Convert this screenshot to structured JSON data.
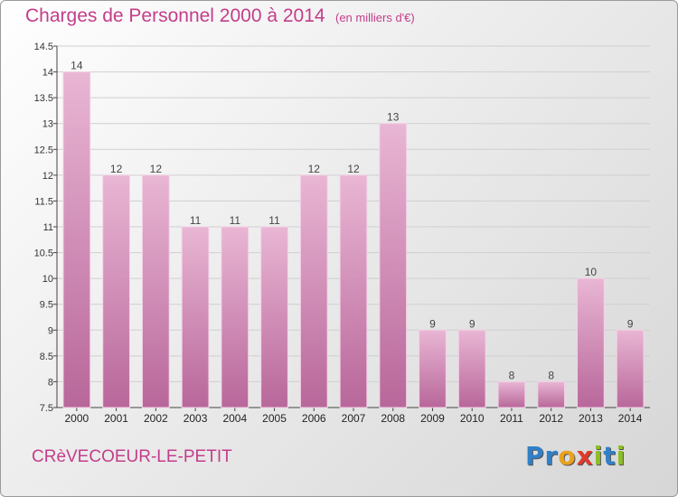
{
  "header": {
    "title": "Charges de Personnel 2000 à 2014",
    "unit": "(en milliers d'€)"
  },
  "footer": {
    "city": "CRèVECOEUR-LE-PETIT",
    "logo_letters": [
      {
        "char": "P",
        "color": "#2f80c8"
      },
      {
        "char": "r",
        "color": "#2f80c8"
      },
      {
        "char": "o",
        "color": "#e8a21c"
      },
      {
        "char": "x",
        "color": "#e23a2a"
      },
      {
        "char": "i",
        "color": "#8cbf26"
      },
      {
        "char": "t",
        "color": "#2f80c8"
      },
      {
        "char": "i",
        "color": "#8cbf26"
      }
    ]
  },
  "colors": {
    "bar_light": "#e9b6d4",
    "bar_dark": "#b8679a",
    "accent": "#c43d8a"
  },
  "chart_data": {
    "type": "bar",
    "categories": [
      "2000",
      "2001",
      "2002",
      "2003",
      "2004",
      "2005",
      "2006",
      "2007",
      "2008",
      "2009",
      "2010",
      "2011",
      "2012",
      "2013",
      "2014"
    ],
    "values": [
      14,
      12,
      12,
      11,
      11,
      11,
      12,
      12,
      13,
      9,
      9,
      8,
      8,
      10,
      9
    ],
    "data_labels": [
      "14",
      "12",
      "12",
      "11",
      "11",
      "11",
      "12",
      "12",
      "13",
      "9",
      "9",
      "8",
      "8",
      "10",
      "9"
    ],
    "title": "Charges de Personnel 2000 à 2014",
    "ylabel": "(en milliers d'€)",
    "ylim": [
      7.5,
      14.5
    ],
    "yticks": [
      7.5,
      8,
      8.5,
      9,
      9.5,
      10,
      10.5,
      11,
      11.5,
      12,
      12.5,
      13,
      13.5,
      14,
      14.5
    ],
    "ytick_labels": [
      "7.5",
      "8",
      "8.5",
      "9",
      "9.5",
      "10",
      "10.5",
      "11",
      "11.5",
      "12",
      "12.5",
      "13",
      "13.5",
      "14",
      "14.5"
    ],
    "grid": true
  }
}
